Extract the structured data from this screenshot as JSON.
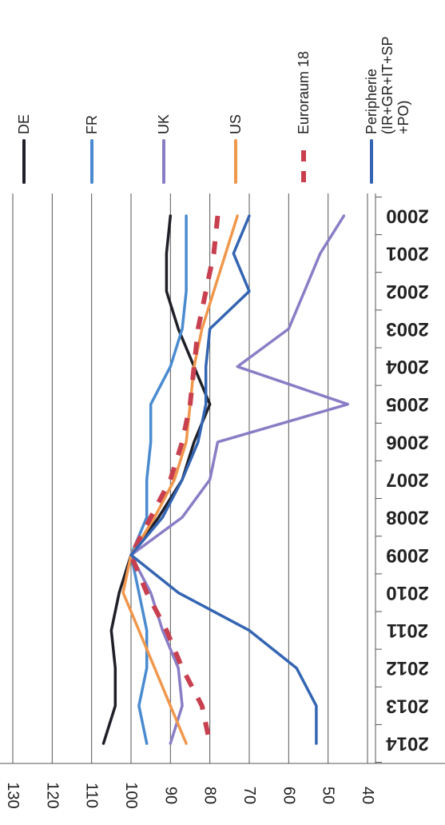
{
  "chart_data": {
    "type": "line",
    "orientation": "rotated-90-clockwise",
    "x": [
      "2000",
      "2001",
      "2002",
      "2003",
      "2004",
      "2005",
      "2006",
      "2007",
      "2008",
      "2009",
      "2010",
      "2011",
      "2012",
      "2013",
      "2014"
    ],
    "ylim": [
      40,
      130
    ],
    "yticks": [
      "40",
      "50",
      "60",
      "70",
      "80",
      "90",
      "100",
      "110",
      "120",
      "130"
    ],
    "grid": true,
    "legend_position": "top",
    "series": [
      {
        "name": "DE",
        "color": "#1f1f28",
        "dash": "solid",
        "values": [
          90,
          91,
          91,
          88,
          84,
          80,
          84,
          87,
          93,
          100,
          103,
          105,
          104,
          104,
          107
        ]
      },
      {
        "name": "FR",
        "color": "#4a8bd0",
        "dash": "solid",
        "values": [
          86,
          86,
          86,
          87,
          90,
          95,
          95,
          96,
          96,
          100,
          98,
          96,
          96,
          98,
          96
        ]
      },
      {
        "name": "UK",
        "color": "#8a7dc6",
        "dash": "solid",
        "values": [
          46,
          52,
          56,
          60,
          73,
          45,
          78,
          80,
          87,
          100,
          95,
          92,
          88,
          87,
          90
        ]
      },
      {
        "name": "US",
        "color": "#f0974c",
        "dash": "solid",
        "values": [
          73,
          76,
          79,
          82,
          84,
          85,
          86,
          89,
          94,
          100,
          102,
          98,
          94,
          90,
          86
        ]
      },
      {
        "name": "Euroraum 18",
        "color": "#c8404f",
        "dash": "dashed",
        "values": [
          78,
          79,
          81,
          83,
          84,
          85,
          87,
          90,
          95,
          100,
          96,
          91,
          87,
          82,
          80
        ]
      },
      {
        "name": "Peripherie (IR+GR+IT+SP +PO)",
        "color": "#3465b2",
        "dash": "solid",
        "values": [
          70,
          74,
          70,
          80,
          81,
          81,
          83,
          87,
          92,
          100,
          88,
          70,
          58,
          53,
          53
        ]
      }
    ],
    "legend_lines": [
      [
        "DE"
      ],
      [
        "FR"
      ],
      [
        "UK"
      ],
      [
        "US"
      ],
      [
        "Euroraum 18"
      ],
      [
        "Peripherie",
        "(IR+GR+IT+SP",
        "+PO)"
      ]
    ]
  }
}
